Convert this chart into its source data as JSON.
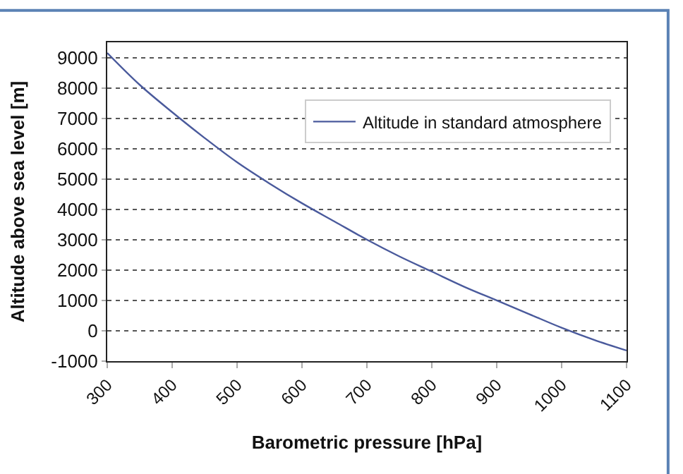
{
  "chart_data": {
    "type": "line",
    "xlabel": "Barometric pressure [hPa]",
    "ylabel": "Altitude above sea level [m]",
    "x": [
      300,
      350,
      400,
      450,
      500,
      550,
      600,
      650,
      700,
      750,
      800,
      850,
      900,
      950,
      1000,
      1050,
      1100
    ],
    "series": [
      {
        "name": "Altitude in standard atmosphere",
        "color": "#4a5a9c",
        "values": [
          9150,
          8100,
          7200,
          6350,
          5550,
          4850,
          4200,
          3600,
          3000,
          2450,
          1950,
          1450,
          1000,
          550,
          100,
          -300,
          -650
        ]
      }
    ],
    "xlim": [
      300,
      1100
    ],
    "xticks": [
      300,
      400,
      500,
      600,
      700,
      800,
      900,
      1000,
      1100
    ],
    "ylim": [
      -1000,
      9500
    ],
    "yticks": [
      -1000,
      0,
      1000,
      2000,
      3000,
      4000,
      5000,
      6000,
      7000,
      8000,
      9000
    ],
    "grid": "y",
    "legend": "top right",
    "marker": "none",
    "line_style": "solid"
  }
}
